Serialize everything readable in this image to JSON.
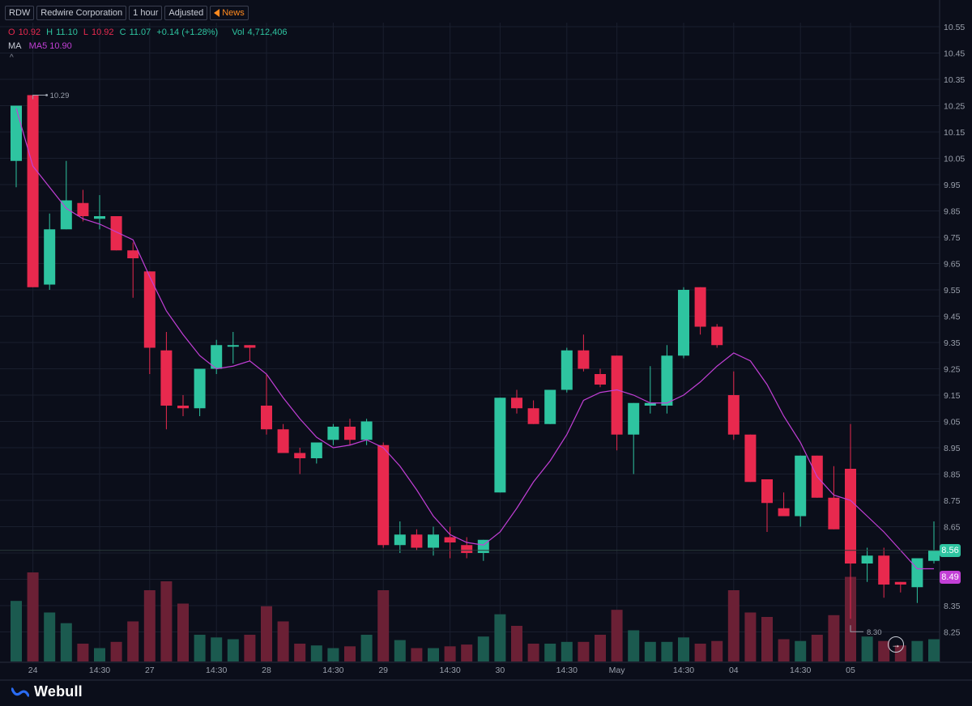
{
  "header": {
    "ticker": "RDW",
    "company": "Redwire Corporation",
    "interval": "1 hour",
    "adjustment": "Adjusted",
    "news_label": "News"
  },
  "ohlc": {
    "o_label": "O",
    "o_value": "10.92",
    "h_label": "H",
    "h_value": "11.10",
    "l_label": "L",
    "l_value": "10.92",
    "c_label": "C",
    "c_value": "11.07",
    "change": "+0.14 (+1.28%)",
    "vol_label": "Vol",
    "vol_value": "4,712,406"
  },
  "indicator": {
    "label": "MA",
    "value_text": "MA5 10.90"
  },
  "brand": {
    "name": "Webull"
  },
  "price_badges": {
    "last": "8.56",
    "ma": "8.49"
  },
  "colors": {
    "up": "#2ec4a0",
    "down": "#e8294e",
    "ma_line": "#c23fd6",
    "background": "#0b0e1a"
  },
  "chart_data": {
    "type": "candlestick",
    "y_ticks": [
      "10.55",
      "10.45",
      "10.35",
      "10.25",
      "10.15",
      "10.05",
      "9.95",
      "9.85",
      "9.75",
      "9.65",
      "9.55",
      "9.45",
      "9.35",
      "9.25",
      "9.15",
      "9.05",
      "8.95",
      "8.85",
      "8.75",
      "8.65",
      "8.55",
      "8.45",
      "8.35",
      "8.25"
    ],
    "y_range": [
      8.15,
      10.6
    ],
    "x_ticks": [
      "24",
      "14:30",
      "27",
      "14:30",
      "28",
      "14:30",
      "29",
      "14:30",
      "30",
      "14:30",
      "May",
      "14:30",
      "04",
      "14:30",
      "05"
    ],
    "max_label": "10.29",
    "min_label": "8.30",
    "candles": [
      {
        "o": 10.04,
        "h": 10.25,
        "l": 9.94,
        "c": 10.25,
        "v": 0.68
      },
      {
        "o": 10.29,
        "h": 10.29,
        "l": 9.56,
        "c": 9.56,
        "v": 1.0
      },
      {
        "o": 9.57,
        "h": 9.84,
        "l": 9.55,
        "c": 9.78,
        "v": 0.55
      },
      {
        "o": 9.78,
        "h": 10.04,
        "l": 9.78,
        "c": 9.89,
        "v": 0.43
      },
      {
        "o": 9.88,
        "h": 9.93,
        "l": 9.81,
        "c": 9.83,
        "v": 0.2
      },
      {
        "o": 9.82,
        "h": 9.91,
        "l": 9.78,
        "c": 9.83,
        "v": 0.15
      },
      {
        "o": 9.83,
        "h": 9.83,
        "l": 9.7,
        "c": 9.7,
        "v": 0.22
      },
      {
        "o": 9.7,
        "h": 9.73,
        "l": 9.52,
        "c": 9.67,
        "v": 0.45
      },
      {
        "o": 9.62,
        "h": 9.62,
        "l": 9.23,
        "c": 9.33,
        "v": 0.8
      },
      {
        "o": 9.32,
        "h": 9.39,
        "l": 9.02,
        "c": 9.11,
        "v": 0.9
      },
      {
        "o": 9.11,
        "h": 9.15,
        "l": 9.07,
        "c": 9.1,
        "v": 0.65
      },
      {
        "o": 9.1,
        "h": 9.25,
        "l": 9.07,
        "c": 9.25,
        "v": 0.3
      },
      {
        "o": 9.25,
        "h": 9.36,
        "l": 9.23,
        "c": 9.34,
        "v": 0.27
      },
      {
        "o": 9.34,
        "h": 9.39,
        "l": 9.27,
        "c": 9.34,
        "v": 0.25
      },
      {
        "o": 9.34,
        "h": 9.34,
        "l": 9.28,
        "c": 9.33,
        "v": 0.3
      },
      {
        "o": 9.11,
        "h": 9.23,
        "l": 9.0,
        "c": 9.02,
        "v": 0.62
      },
      {
        "o": 9.02,
        "h": 9.04,
        "l": 8.93,
        "c": 8.93,
        "v": 0.45
      },
      {
        "o": 8.93,
        "h": 8.95,
        "l": 8.85,
        "c": 8.91,
        "v": 0.2
      },
      {
        "o": 8.91,
        "h": 8.97,
        "l": 8.89,
        "c": 8.97,
        "v": 0.18
      },
      {
        "o": 8.98,
        "h": 9.04,
        "l": 8.96,
        "c": 9.03,
        "v": 0.15
      },
      {
        "o": 9.03,
        "h": 9.06,
        "l": 8.96,
        "c": 8.98,
        "v": 0.17
      },
      {
        "o": 8.98,
        "h": 9.06,
        "l": 8.96,
        "c": 9.05,
        "v": 0.3
      },
      {
        "o": 8.96,
        "h": 8.97,
        "l": 8.57,
        "c": 8.58,
        "v": 0.8
      },
      {
        "o": 8.58,
        "h": 8.67,
        "l": 8.55,
        "c": 8.62,
        "v": 0.24
      },
      {
        "o": 8.62,
        "h": 8.64,
        "l": 8.56,
        "c": 8.57,
        "v": 0.15
      },
      {
        "o": 8.57,
        "h": 8.65,
        "l": 8.54,
        "c": 8.62,
        "v": 0.15
      },
      {
        "o": 8.61,
        "h": 8.65,
        "l": 8.53,
        "c": 8.59,
        "v": 0.17
      },
      {
        "o": 8.58,
        "h": 8.61,
        "l": 8.53,
        "c": 8.55,
        "v": 0.19
      },
      {
        "o": 8.55,
        "h": 8.6,
        "l": 8.52,
        "c": 8.6,
        "v": 0.28
      },
      {
        "o": 8.78,
        "h": 9.14,
        "l": 8.78,
        "c": 9.14,
        "v": 0.53
      },
      {
        "o": 9.14,
        "h": 9.17,
        "l": 9.08,
        "c": 9.1,
        "v": 0.4
      },
      {
        "o": 9.1,
        "h": 9.13,
        "l": 9.04,
        "c": 9.04,
        "v": 0.2
      },
      {
        "o": 9.04,
        "h": 9.17,
        "l": 9.04,
        "c": 9.17,
        "v": 0.2
      },
      {
        "o": 9.17,
        "h": 9.33,
        "l": 9.16,
        "c": 9.32,
        "v": 0.22
      },
      {
        "o": 9.32,
        "h": 9.38,
        "l": 9.24,
        "c": 9.25,
        "v": 0.22
      },
      {
        "o": 9.23,
        "h": 9.25,
        "l": 9.18,
        "c": 9.19,
        "v": 0.3
      },
      {
        "o": 9.3,
        "h": 9.3,
        "l": 8.94,
        "c": 9.0,
        "v": 0.58
      },
      {
        "o": 9.0,
        "h": 9.12,
        "l": 8.85,
        "c": 9.12,
        "v": 0.35
      },
      {
        "o": 9.11,
        "h": 9.26,
        "l": 9.08,
        "c": 9.12,
        "v": 0.22
      },
      {
        "o": 9.11,
        "h": 9.34,
        "l": 9.08,
        "c": 9.3,
        "v": 0.22
      },
      {
        "o": 9.3,
        "h": 9.56,
        "l": 9.29,
        "c": 9.55,
        "v": 0.27
      },
      {
        "o": 9.56,
        "h": 9.56,
        "l": 9.38,
        "c": 9.41,
        "v": 0.2
      },
      {
        "o": 9.41,
        "h": 9.42,
        "l": 9.33,
        "c": 9.34,
        "v": 0.23
      },
      {
        "o": 9.15,
        "h": 9.24,
        "l": 8.98,
        "c": 9.0,
        "v": 0.8
      },
      {
        "o": 9.0,
        "h": 9.0,
        "l": 8.82,
        "c": 8.82,
        "v": 0.55
      },
      {
        "o": 8.83,
        "h": 8.83,
        "l": 8.63,
        "c": 8.74,
        "v": 0.5
      },
      {
        "o": 8.72,
        "h": 8.78,
        "l": 8.69,
        "c": 8.69,
        "v": 0.25
      },
      {
        "o": 8.69,
        "h": 8.92,
        "l": 8.65,
        "c": 8.92,
        "v": 0.23
      },
      {
        "o": 8.92,
        "h": 8.92,
        "l": 8.76,
        "c": 8.76,
        "v": 0.3
      },
      {
        "o": 8.76,
        "h": 8.88,
        "l": 8.64,
        "c": 8.64,
        "v": 0.52
      },
      {
        "o": 8.87,
        "h": 9.04,
        "l": 8.3,
        "c": 8.51,
        "v": 0.95
      },
      {
        "o": 8.51,
        "h": 8.57,
        "l": 8.44,
        "c": 8.54,
        "v": 0.28
      },
      {
        "o": 8.54,
        "h": 8.57,
        "l": 8.38,
        "c": 8.43,
        "v": 0.23
      },
      {
        "o": 8.44,
        "h": 8.44,
        "l": 8.4,
        "c": 8.43,
        "v": 0.18
      },
      {
        "o": 8.42,
        "h": 8.53,
        "l": 8.36,
        "c": 8.53,
        "v": 0.23
      },
      {
        "o": 8.52,
        "h": 8.67,
        "l": 8.51,
        "c": 8.56,
        "v": 0.25
      }
    ],
    "ma5": [
      10.24,
      10.02,
      9.94,
      9.86,
      9.82,
      9.8,
      9.77,
      9.74,
      9.6,
      9.47,
      9.38,
      9.3,
      9.25,
      9.26,
      9.28,
      9.23,
      9.14,
      9.06,
      8.99,
      8.95,
      8.96,
      8.98,
      8.95,
      8.88,
      8.79,
      8.69,
      8.62,
      8.59,
      8.58,
      8.63,
      8.72,
      8.82,
      8.9,
      9.0,
      9.13,
      9.16,
      9.17,
      9.15,
      9.12,
      9.12,
      9.15,
      9.2,
      9.26,
      9.31,
      9.28,
      9.19,
      9.07,
      8.97,
      8.84,
      8.77,
      8.75,
      8.69,
      8.63,
      8.56,
      8.49,
      8.49
    ]
  }
}
